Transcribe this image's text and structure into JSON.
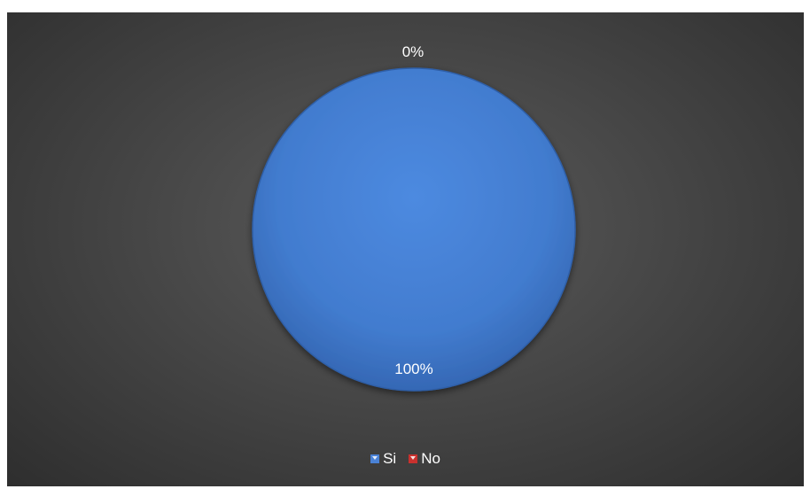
{
  "chart_data": {
    "type": "pie",
    "categories": [
      "Si",
      "No"
    ],
    "values": [
      100,
      0
    ],
    "labels": [
      "100%",
      "0%"
    ],
    "colors": [
      "#4a82d6",
      "#c9312e"
    ],
    "legend_position": "bottom"
  },
  "legend": {
    "items": [
      {
        "label": "Si",
        "color": "#4a82d6"
      },
      {
        "label": "No",
        "color": "#c9312e"
      }
    ]
  }
}
